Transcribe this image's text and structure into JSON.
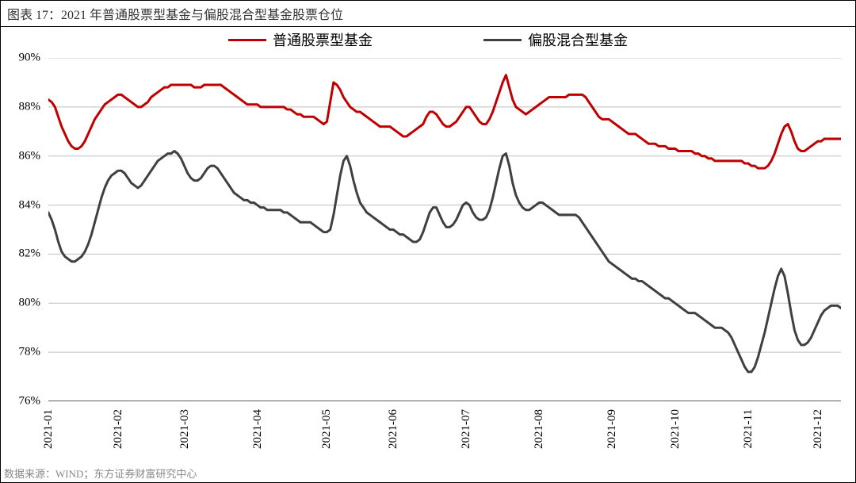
{
  "title": "图表 17：2021 年普通股票型基金与偏股混合型基金股票仓位",
  "source": "数据来源：WIND；东方证券财富研究中心",
  "chart": {
    "type": "line",
    "background_color": "#ffffff",
    "grid_color": "#bfbfbf",
    "axis_color": "#000000",
    "y_axis": {
      "min": 76,
      "max": 90,
      "ticks": [
        76,
        78,
        80,
        82,
        84,
        86,
        88,
        90
      ],
      "tick_labels": [
        "76%",
        "78%",
        "80%",
        "82%",
        "84%",
        "86%",
        "88%",
        "90%"
      ],
      "label_fontsize": 15
    },
    "x_axis": {
      "ticks": [
        0,
        21,
        41,
        63,
        84,
        104,
        126,
        148,
        170,
        189,
        211,
        232
      ],
      "tick_labels": [
        "2021-01",
        "2021-02",
        "2021-03",
        "2021-04",
        "2021-05",
        "2021-06",
        "2021-07",
        "2021-08",
        "2021-09",
        "2021-10",
        "2021-11",
        "2021-12"
      ],
      "n_points": 240,
      "label_fontsize": 15,
      "rotation": "vertical"
    },
    "legend": {
      "position": "top",
      "fontsize": 18,
      "items": [
        {
          "label": "普通股票型基金",
          "color": "#c00000"
        },
        {
          "label": "偏股混合型基金",
          "color": "#404040"
        }
      ]
    },
    "series": [
      {
        "name": "普通股票型基金",
        "color": "#c00000",
        "line_width": 3,
        "data": [
          88.3,
          88.2,
          88.0,
          87.6,
          87.2,
          86.9,
          86.6,
          86.4,
          86.3,
          86.3,
          86.4,
          86.6,
          86.9,
          87.2,
          87.5,
          87.7,
          87.9,
          88.1,
          88.2,
          88.3,
          88.4,
          88.5,
          88.5,
          88.4,
          88.3,
          88.2,
          88.1,
          88.0,
          88.0,
          88.1,
          88.2,
          88.4,
          88.5,
          88.6,
          88.7,
          88.8,
          88.8,
          88.9,
          88.9,
          88.9,
          88.9,
          88.9,
          88.9,
          88.9,
          88.8,
          88.8,
          88.8,
          88.9,
          88.9,
          88.9,
          88.9,
          88.9,
          88.9,
          88.8,
          88.7,
          88.6,
          88.5,
          88.4,
          88.3,
          88.2,
          88.1,
          88.1,
          88.1,
          88.1,
          88.0,
          88.0,
          88.0,
          88.0,
          88.0,
          88.0,
          88.0,
          88.0,
          87.9,
          87.9,
          87.8,
          87.7,
          87.7,
          87.6,
          87.6,
          87.6,
          87.6,
          87.5,
          87.4,
          87.3,
          87.4,
          88.2,
          89.0,
          88.9,
          88.7,
          88.4,
          88.2,
          88.0,
          87.9,
          87.8,
          87.8,
          87.7,
          87.6,
          87.5,
          87.4,
          87.3,
          87.2,
          87.2,
          87.2,
          87.2,
          87.1,
          87.0,
          86.9,
          86.8,
          86.8,
          86.9,
          87.0,
          87.1,
          87.2,
          87.3,
          87.6,
          87.8,
          87.8,
          87.7,
          87.5,
          87.3,
          87.2,
          87.2,
          87.3,
          87.4,
          87.6,
          87.8,
          88.0,
          88.0,
          87.8,
          87.6,
          87.4,
          87.3,
          87.3,
          87.5,
          87.8,
          88.2,
          88.6,
          89.0,
          89.3,
          88.8,
          88.3,
          88.0,
          87.9,
          87.8,
          87.7,
          87.8,
          87.9,
          88.0,
          88.1,
          88.2,
          88.3,
          88.4,
          88.4,
          88.4,
          88.4,
          88.4,
          88.4,
          88.5,
          88.5,
          88.5,
          88.5,
          88.5,
          88.4,
          88.2,
          88.0,
          87.8,
          87.6,
          87.5,
          87.5,
          87.5,
          87.4,
          87.3,
          87.2,
          87.1,
          87.0,
          86.9,
          86.9,
          86.9,
          86.8,
          86.7,
          86.6,
          86.5,
          86.5,
          86.5,
          86.4,
          86.4,
          86.4,
          86.3,
          86.3,
          86.3,
          86.2,
          86.2,
          86.2,
          86.2,
          86.2,
          86.1,
          86.1,
          86.0,
          86.0,
          85.9,
          85.9,
          85.8,
          85.8,
          85.8,
          85.8,
          85.8,
          85.8,
          85.8,
          85.8,
          85.8,
          85.7,
          85.7,
          85.6,
          85.6,
          85.5,
          85.5,
          85.5,
          85.6,
          85.8,
          86.1,
          86.5,
          86.9,
          87.2,
          87.3,
          87.0,
          86.6,
          86.3,
          86.2,
          86.2,
          86.3,
          86.4,
          86.5,
          86.6,
          86.6,
          86.7,
          86.7,
          86.7,
          86.7,
          86.7,
          86.7
        ]
      },
      {
        "name": "偏股混合型基金",
        "color": "#404040",
        "line_width": 3,
        "data": [
          83.7,
          83.4,
          83.0,
          82.5,
          82.1,
          81.9,
          81.8,
          81.7,
          81.7,
          81.8,
          81.9,
          82.1,
          82.4,
          82.8,
          83.3,
          83.8,
          84.3,
          84.7,
          85.0,
          85.2,
          85.3,
          85.4,
          85.4,
          85.3,
          85.1,
          84.9,
          84.8,
          84.7,
          84.8,
          85.0,
          85.2,
          85.4,
          85.6,
          85.8,
          85.9,
          86.0,
          86.1,
          86.1,
          86.2,
          86.1,
          85.9,
          85.6,
          85.3,
          85.1,
          85.0,
          85.0,
          85.1,
          85.3,
          85.5,
          85.6,
          85.6,
          85.5,
          85.3,
          85.1,
          84.9,
          84.7,
          84.5,
          84.4,
          84.3,
          84.2,
          84.2,
          84.1,
          84.1,
          84.0,
          83.9,
          83.9,
          83.8,
          83.8,
          83.8,
          83.8,
          83.8,
          83.7,
          83.7,
          83.6,
          83.5,
          83.4,
          83.3,
          83.3,
          83.3,
          83.3,
          83.2,
          83.1,
          83.0,
          82.9,
          82.9,
          83.0,
          83.6,
          84.4,
          85.2,
          85.8,
          86.0,
          85.6,
          85.0,
          84.5,
          84.1,
          83.9,
          83.7,
          83.6,
          83.5,
          83.4,
          83.3,
          83.2,
          83.1,
          83.0,
          83.0,
          82.9,
          82.8,
          82.8,
          82.7,
          82.6,
          82.5,
          82.5,
          82.6,
          82.9,
          83.3,
          83.7,
          83.9,
          83.9,
          83.6,
          83.3,
          83.1,
          83.1,
          83.2,
          83.4,
          83.7,
          84.0,
          84.1,
          84.0,
          83.7,
          83.5,
          83.4,
          83.4,
          83.5,
          83.8,
          84.3,
          84.9,
          85.5,
          86.0,
          86.1,
          85.6,
          84.9,
          84.4,
          84.1,
          83.9,
          83.8,
          83.8,
          83.9,
          84.0,
          84.1,
          84.1,
          84.0,
          83.9,
          83.8,
          83.7,
          83.6,
          83.6,
          83.6,
          83.6,
          83.6,
          83.6,
          83.5,
          83.3,
          83.1,
          82.9,
          82.7,
          82.5,
          82.3,
          82.1,
          81.9,
          81.7,
          81.6,
          81.5,
          81.4,
          81.3,
          81.2,
          81.1,
          81.0,
          81.0,
          80.9,
          80.9,
          80.8,
          80.7,
          80.6,
          80.5,
          80.4,
          80.3,
          80.2,
          80.2,
          80.1,
          80.0,
          79.9,
          79.8,
          79.7,
          79.6,
          79.6,
          79.6,
          79.5,
          79.4,
          79.3,
          79.2,
          79.1,
          79.0,
          79.0,
          79.0,
          78.9,
          78.8,
          78.6,
          78.3,
          78.0,
          77.7,
          77.4,
          77.2,
          77.2,
          77.4,
          77.8,
          78.3,
          78.8,
          79.4,
          80.0,
          80.6,
          81.1,
          81.4,
          81.1,
          80.4,
          79.6,
          78.9,
          78.5,
          78.3,
          78.3,
          78.4,
          78.6,
          78.9,
          79.2,
          79.5,
          79.7,
          79.8,
          79.9,
          79.9,
          79.9,
          79.8
        ]
      }
    ]
  }
}
